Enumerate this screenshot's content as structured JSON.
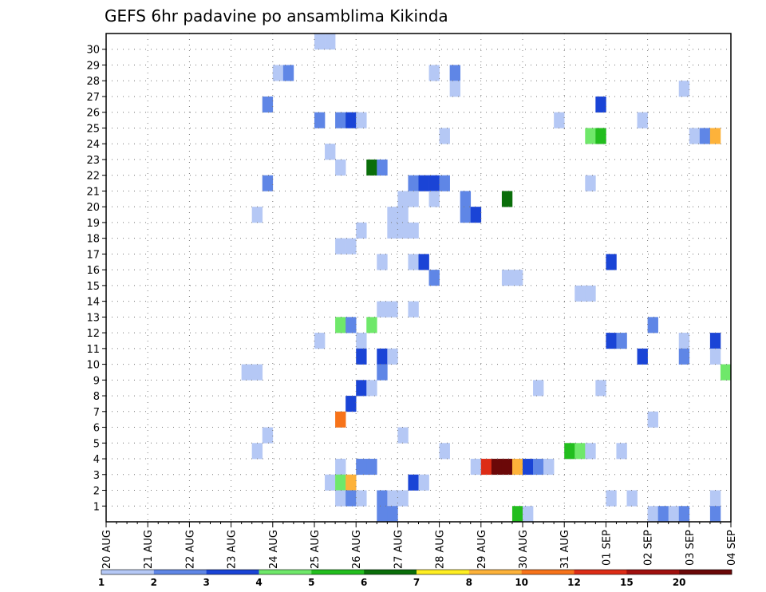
{
  "chart_data": {
    "type": "heatmap",
    "title": "GEFS 6hr padavine po ansamblima Kikinda",
    "x_tick_labels": [
      "20 AUG",
      "21 AUG",
      "22 AUG",
      "23 AUG",
      "24 AUG",
      "25 AUG",
      "26 AUG",
      "27 AUG",
      "28 AUG",
      "29 AUG",
      "30 AUG",
      "31 AUG",
      "01 SEP",
      "02 SEP",
      "03 SEP",
      "04 SEP"
    ],
    "y_tick_labels": [
      "1",
      "2",
      "3",
      "4",
      "5",
      "6",
      "7",
      "8",
      "9",
      "10",
      "11",
      "12",
      "13",
      "14",
      "15",
      "16",
      "17",
      "18",
      "19",
      "20",
      "21",
      "22",
      "23",
      "24",
      "25",
      "26",
      "27",
      "28",
      "29",
      "30"
    ],
    "steps_per_day": 4,
    "n_steps": 60,
    "grid": true,
    "colorbar": {
      "labels": [
        "1",
        "2",
        "3",
        "4",
        "5",
        "6",
        "7",
        "8",
        "10",
        "12",
        "15",
        "20"
      ],
      "colors": [
        "#b5c8f5",
        "#5f86e6",
        "#1a44d6",
        "#6fe86a",
        "#22be1e",
        "#0a6e0a",
        "#ffee22",
        "#fdb23a",
        "#f7731a",
        "#dd2c16",
        "#a0100e",
        "#6b0808"
      ]
    },
    "cells": [
      {
        "member": 30,
        "step": 21,
        "level": 1
      },
      {
        "member": 30,
        "step": 22,
        "level": 1
      },
      {
        "member": 28,
        "step": 17,
        "level": 1
      },
      {
        "member": 28,
        "step": 18,
        "level": 2
      },
      {
        "member": 28,
        "step": 32,
        "level": 1
      },
      {
        "member": 28,
        "step": 34,
        "level": 2
      },
      {
        "member": 27,
        "step": 34,
        "level": 1
      },
      {
        "member": 27,
        "step": 56,
        "level": 1
      },
      {
        "member": 26,
        "step": 16,
        "level": 2
      },
      {
        "member": 26,
        "step": 48,
        "level": 3
      },
      {
        "member": 25,
        "step": 21,
        "level": 2
      },
      {
        "member": 25,
        "step": 23,
        "level": 2
      },
      {
        "member": 25,
        "step": 24,
        "level": 3
      },
      {
        "member": 25,
        "step": 25,
        "level": 1
      },
      {
        "member": 25,
        "step": 44,
        "level": 1
      },
      {
        "member": 25,
        "step": 52,
        "level": 1
      },
      {
        "member": 24,
        "step": 33,
        "level": 1
      },
      {
        "member": 24,
        "step": 47,
        "level": 4
      },
      {
        "member": 24,
        "step": 48,
        "level": 5
      },
      {
        "member": 24,
        "step": 57,
        "level": 1
      },
      {
        "member": 24,
        "step": 58,
        "level": 2
      },
      {
        "member": 24,
        "step": 59,
        "level": 8
      },
      {
        "member": 23,
        "step": 22,
        "level": 1
      },
      {
        "member": 22,
        "step": 23,
        "level": 1
      },
      {
        "member": 22,
        "step": 26,
        "level": 6
      },
      {
        "member": 22,
        "step": 27,
        "level": 2
      },
      {
        "member": 21,
        "step": 16,
        "level": 2
      },
      {
        "member": 21,
        "step": 30,
        "level": 2
      },
      {
        "member": 21,
        "step": 31,
        "level": 3
      },
      {
        "member": 21,
        "step": 32,
        "level": 3
      },
      {
        "member": 21,
        "step": 33,
        "level": 2
      },
      {
        "member": 21,
        "step": 47,
        "level": 1
      },
      {
        "member": 20,
        "step": 29,
        "level": 1
      },
      {
        "member": 20,
        "step": 30,
        "level": 1
      },
      {
        "member": 20,
        "step": 32,
        "level": 1
      },
      {
        "member": 20,
        "step": 35,
        "level": 2
      },
      {
        "member": 20,
        "step": 39,
        "level": 6
      },
      {
        "member": 19,
        "step": 15,
        "level": 1
      },
      {
        "member": 19,
        "step": 28,
        "level": 1
      },
      {
        "member": 19,
        "step": 29,
        "level": 1
      },
      {
        "member": 19,
        "step": 35,
        "level": 2
      },
      {
        "member": 19,
        "step": 36,
        "level": 3
      },
      {
        "member": 18,
        "step": 25,
        "level": 1
      },
      {
        "member": 18,
        "step": 28,
        "level": 1
      },
      {
        "member": 18,
        "step": 29,
        "level": 1
      },
      {
        "member": 18,
        "step": 30,
        "level": 1
      },
      {
        "member": 17,
        "step": 23,
        "level": 1
      },
      {
        "member": 17,
        "step": 24,
        "level": 1
      },
      {
        "member": 16,
        "step": 27,
        "level": 1
      },
      {
        "member": 16,
        "step": 30,
        "level": 1
      },
      {
        "member": 16,
        "step": 31,
        "level": 3
      },
      {
        "member": 16,
        "step": 49,
        "level": 3
      },
      {
        "member": 15,
        "step": 32,
        "level": 2
      },
      {
        "member": 15,
        "step": 39,
        "level": 1
      },
      {
        "member": 15,
        "step": 40,
        "level": 1
      },
      {
        "member": 14,
        "step": 46,
        "level": 1
      },
      {
        "member": 14,
        "step": 47,
        "level": 1
      },
      {
        "member": 13,
        "step": 27,
        "level": 1
      },
      {
        "member": 13,
        "step": 28,
        "level": 1
      },
      {
        "member": 13,
        "step": 30,
        "level": 1
      },
      {
        "member": 12,
        "step": 23,
        "level": 4
      },
      {
        "member": 12,
        "step": 24,
        "level": 2
      },
      {
        "member": 12,
        "step": 26,
        "level": 4
      },
      {
        "member": 12,
        "step": 53,
        "level": 2
      },
      {
        "member": 11,
        "step": 21,
        "level": 1
      },
      {
        "member": 11,
        "step": 25,
        "level": 1
      },
      {
        "member": 11,
        "step": 49,
        "level": 3
      },
      {
        "member": 11,
        "step": 50,
        "level": 2
      },
      {
        "member": 11,
        "step": 56,
        "level": 1
      },
      {
        "member": 11,
        "step": 59,
        "level": 3
      },
      {
        "member": 10,
        "step": 25,
        "level": 3
      },
      {
        "member": 10,
        "step": 27,
        "level": 3
      },
      {
        "member": 10,
        "step": 28,
        "level": 1
      },
      {
        "member": 10,
        "step": 52,
        "level": 3
      },
      {
        "member": 10,
        "step": 56,
        "level": 2
      },
      {
        "member": 10,
        "step": 59,
        "level": 1
      },
      {
        "member": 9,
        "step": 14,
        "level": 1
      },
      {
        "member": 9,
        "step": 15,
        "level": 1
      },
      {
        "member": 9,
        "step": 27,
        "level": 2
      },
      {
        "member": 9,
        "step": 60,
        "level": 4
      },
      {
        "member": 8,
        "step": 25,
        "level": 3
      },
      {
        "member": 8,
        "step": 26,
        "level": 1
      },
      {
        "member": 8,
        "step": 42,
        "level": 1
      },
      {
        "member": 8,
        "step": 48,
        "level": 1
      },
      {
        "member": 7,
        "step": 24,
        "level": 3
      },
      {
        "member": 6,
        "step": 23,
        "level": 9
      },
      {
        "member": 6,
        "step": 53,
        "level": 1
      },
      {
        "member": 5,
        "step": 16,
        "level": 1
      },
      {
        "member": 5,
        "step": 29,
        "level": 1
      },
      {
        "member": 4,
        "step": 15,
        "level": 1
      },
      {
        "member": 4,
        "step": 33,
        "level": 1
      },
      {
        "member": 4,
        "step": 45,
        "level": 5
      },
      {
        "member": 4,
        "step": 46,
        "level": 4
      },
      {
        "member": 4,
        "step": 47,
        "level": 1
      },
      {
        "member": 4,
        "step": 50,
        "level": 1
      },
      {
        "member": 3,
        "step": 23,
        "level": 1
      },
      {
        "member": 3,
        "step": 25,
        "level": 2
      },
      {
        "member": 3,
        "step": 26,
        "level": 2
      },
      {
        "member": 3,
        "step": 36,
        "level": 1
      },
      {
        "member": 3,
        "step": 37,
        "level": 10
      },
      {
        "member": 3,
        "step": 38,
        "level": 12
      },
      {
        "member": 3,
        "step": 39,
        "level": 12
      },
      {
        "member": 3,
        "step": 40,
        "level": 8
      },
      {
        "member": 3,
        "step": 41,
        "level": 3
      },
      {
        "member": 3,
        "step": 42,
        "level": 2
      },
      {
        "member": 3,
        "step": 43,
        "level": 1
      },
      {
        "member": 2,
        "step": 22,
        "level": 1
      },
      {
        "member": 2,
        "step": 23,
        "level": 4
      },
      {
        "member": 2,
        "step": 24,
        "level": 8
      },
      {
        "member": 2,
        "step": 30,
        "level": 3
      },
      {
        "member": 2,
        "step": 31,
        "level": 1
      },
      {
        "member": 1,
        "step": 23,
        "level": 1
      },
      {
        "member": 1,
        "step": 24,
        "level": 2
      },
      {
        "member": 1,
        "step": 25,
        "level": 1
      },
      {
        "member": 1,
        "step": 27,
        "level": 2
      },
      {
        "member": 1,
        "step": 28,
        "level": 1
      },
      {
        "member": 1,
        "step": 29,
        "level": 1
      },
      {
        "member": 1,
        "step": 49,
        "level": 1
      },
      {
        "member": 1,
        "step": 51,
        "level": 1
      },
      {
        "member": 1,
        "step": 59,
        "level": 1
      },
      {
        "member": 0,
        "step": 27,
        "level": 2
      },
      {
        "member": 0,
        "step": 28,
        "level": 2
      },
      {
        "member": 0,
        "step": 40,
        "level": 5
      },
      {
        "member": 0,
        "step": 41,
        "level": 1
      },
      {
        "member": 0,
        "step": 53,
        "level": 1
      },
      {
        "member": 0,
        "step": 54,
        "level": 2
      },
      {
        "member": 0,
        "step": 55,
        "level": 1
      },
      {
        "member": 0,
        "step": 56,
        "level": 2
      },
      {
        "member": 0,
        "step": 59,
        "level": 2
      }
    ]
  }
}
